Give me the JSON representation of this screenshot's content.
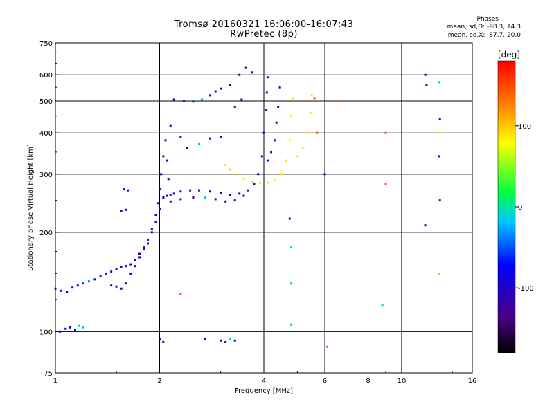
{
  "chart_data": {
    "type": "scatter",
    "title": "Tromsø 20160321 16:06:00-16:07:43",
    "subtitle": "RwPretec (8p)",
    "xlabel": "Frequency [MHz]",
    "ylabel": "Stationary phase Virtual Height [km]",
    "x_scale": "log",
    "y_scale": "log",
    "xlim": [
      1,
      16
    ],
    "ylim": [
      75,
      750
    ],
    "x_ticks": [
      1,
      2,
      4,
      6,
      8,
      10,
      16
    ],
    "x_tick_labels": [
      "1",
      "2",
      "4",
      "6",
      "8",
      "10",
      "16"
    ],
    "y_ticks": [
      75,
      100,
      200,
      300,
      400,
      500,
      600,
      750
    ],
    "y_tick_labels": [
      "75",
      "100",
      "200",
      "300",
      "400",
      "500",
      "600",
      "750"
    ],
    "x_gridlines": [
      2,
      4,
      6,
      8,
      10
    ],
    "y_gridlines": [
      100,
      200,
      300,
      400,
      500,
      600
    ],
    "grid": true,
    "legend": {
      "title": "Phases",
      "lines": [
        "mean, sd,O: -98.3, 14.3",
        "mean, sd,X:  87.7, 20.0"
      ],
      "placement": "top-right"
    },
    "colorbar": {
      "label": "[deg]",
      "ticks": [
        100,
        0,
        -100
      ],
      "tick_labels": [
        "100",
        "0",
        "-100"
      ],
      "range": [
        -180,
        180
      ],
      "colormap": "rainbow"
    },
    "series": [
      {
        "trace": "o-mode-low",
        "points": [
          [
            1.0,
            135,
            -105
          ],
          [
            1.04,
            133,
            -100
          ],
          [
            1.08,
            132,
            -110
          ],
          [
            1.12,
            136,
            -95
          ],
          [
            1.16,
            138,
            -100
          ],
          [
            1.2,
            140,
            -60
          ],
          [
            1.25,
            142,
            -40
          ],
          [
            1.3,
            144,
            -70
          ],
          [
            1.35,
            147,
            -100
          ],
          [
            1.4,
            150,
            -95
          ],
          [
            1.45,
            152,
            -100
          ],
          [
            1.5,
            155,
            -105
          ],
          [
            1.55,
            157,
            -100
          ],
          [
            1.6,
            158,
            -90
          ],
          [
            1.65,
            160,
            -100
          ],
          [
            1.7,
            165,
            -110
          ],
          [
            1.75,
            172,
            -100
          ],
          [
            1.8,
            180,
            -105
          ],
          [
            1.85,
            190,
            -95
          ],
          [
            1.9,
            205,
            -100
          ],
          [
            1.95,
            225,
            -110
          ],
          [
            1.98,
            245,
            -100
          ],
          [
            2.0,
            270,
            -105
          ],
          [
            2.02,
            300,
            -100
          ],
          [
            2.05,
            340,
            -110
          ],
          [
            2.08,
            380,
            -95
          ],
          [
            2.1,
            330,
            -100
          ],
          [
            2.12,
            290,
            -105
          ],
          [
            2.15,
            260,
            -100
          ],
          [
            1.45,
            138,
            -100
          ],
          [
            1.5,
            137,
            -95
          ],
          [
            1.55,
            135,
            -105
          ],
          [
            1.6,
            140,
            -100
          ],
          [
            1.65,
            150,
            -110
          ],
          [
            1.7,
            158,
            -100
          ],
          [
            1.75,
            168,
            -95
          ],
          [
            1.8,
            178,
            -100
          ],
          [
            1.85,
            185,
            -105
          ],
          [
            1.9,
            200,
            -100
          ],
          [
            1.95,
            215,
            -95
          ],
          [
            2.0,
            235,
            -110
          ],
          [
            2.05,
            255,
            -100
          ],
          [
            1.55,
            232,
            -105
          ],
          [
            1.6,
            234,
            -100
          ],
          [
            1.58,
            270,
            -100
          ],
          [
            1.62,
            268,
            -95
          ]
        ]
      },
      {
        "trace": "low-echo",
        "points": [
          [
            1.03,
            100,
            -110
          ],
          [
            1.07,
            102,
            -100
          ],
          [
            1.1,
            103,
            -105
          ],
          [
            1.14,
            101,
            -95
          ],
          [
            1.17,
            104,
            0
          ],
          [
            1.2,
            103,
            -20
          ],
          [
            2.0,
            95,
            -100
          ],
          [
            2.05,
            93,
            -105
          ],
          [
            2.7,
            95,
            -100
          ],
          [
            3.0,
            94,
            -110
          ],
          [
            3.1,
            93,
            -100
          ],
          [
            3.2,
            95,
            -20
          ],
          [
            3.3,
            94,
            -105
          ]
        ]
      },
      {
        "trace": "o-mode-F",
        "points": [
          [
            2.1,
            258,
            -100
          ],
          [
            2.2,
            262,
            -105
          ],
          [
            2.3,
            266,
            -100
          ],
          [
            2.45,
            268,
            -110
          ],
          [
            2.6,
            268,
            -100
          ],
          [
            2.8,
            266,
            -95
          ],
          [
            3.0,
            263,
            -100
          ],
          [
            3.2,
            260,
            -105
          ],
          [
            3.4,
            262,
            -100
          ],
          [
            3.6,
            268,
            -110
          ],
          [
            3.75,
            280,
            -100
          ],
          [
            3.85,
            300,
            -95
          ],
          [
            3.95,
            340,
            -100
          ],
          [
            4.0,
            400,
            -105
          ],
          [
            4.05,
            470,
            -110
          ],
          [
            4.08,
            530,
            -100
          ],
          [
            4.1,
            590,
            -95
          ],
          [
            2.15,
            248,
            -100
          ],
          [
            2.3,
            252,
            -95
          ],
          [
            2.5,
            255,
            -100
          ],
          [
            2.7,
            255,
            -20
          ],
          [
            2.9,
            252,
            -100
          ],
          [
            3.1,
            248,
            -105
          ],
          [
            3.3,
            250,
            -100
          ],
          [
            3.5,
            258,
            -110
          ],
          [
            4.1,
            330,
            -100
          ],
          [
            4.2,
            350,
            -105
          ],
          [
            4.3,
            380,
            -100
          ],
          [
            4.35,
            430,
            -95
          ],
          [
            4.4,
            480,
            -100
          ],
          [
            4.45,
            550,
            -110
          ]
        ]
      },
      {
        "trace": "o-mode-upper",
        "points": [
          [
            2.2,
            505,
            -100
          ],
          [
            2.35,
            500,
            -95
          ],
          [
            2.5,
            498,
            -100
          ],
          [
            2.65,
            505,
            -20
          ],
          [
            2.8,
            520,
            -100
          ],
          [
            2.9,
            535,
            -110
          ],
          [
            3.0,
            545,
            -100
          ],
          [
            3.2,
            560,
            -105
          ],
          [
            3.4,
            600,
            -130
          ],
          [
            3.55,
            630,
            -120
          ],
          [
            3.7,
            610,
            -100
          ],
          [
            3.3,
            480,
            -130
          ],
          [
            3.45,
            505,
            -100
          ],
          [
            2.4,
            360,
            -100
          ],
          [
            2.6,
            370,
            -20
          ],
          [
            2.8,
            385,
            -100
          ],
          [
            3.0,
            390,
            -105
          ],
          [
            2.3,
            390,
            -100
          ],
          [
            2.15,
            420,
            -100
          ]
        ]
      },
      {
        "trace": "x-mode-F",
        "points": [
          [
            3.1,
            320,
            90
          ],
          [
            3.2,
            310,
            95
          ],
          [
            3.35,
            298,
            88
          ],
          [
            3.5,
            290,
            85
          ],
          [
            3.7,
            285,
            92
          ],
          [
            3.9,
            282,
            87
          ],
          [
            4.1,
            283,
            90
          ],
          [
            4.3,
            288,
            85
          ],
          [
            4.5,
            300,
            90
          ],
          [
            4.65,
            330,
            92
          ],
          [
            4.75,
            380,
            85
          ],
          [
            4.8,
            450,
            88
          ],
          [
            4.85,
            510,
            90
          ],
          [
            5.0,
            340,
            88
          ],
          [
            5.2,
            360,
            85
          ],
          [
            5.35,
            400,
            90
          ],
          [
            5.45,
            460,
            87
          ],
          [
            5.5,
            520,
            90
          ]
        ]
      },
      {
        "trace": "scattered",
        "points": [
          [
            4.75,
            220,
            -100
          ],
          [
            4.8,
            180,
            0
          ],
          [
            4.8,
            140,
            -20
          ],
          [
            4.8,
            105,
            -20
          ],
          [
            5.6,
            510,
            150
          ],
          [
            5.7,
            400,
            140
          ],
          [
            6.0,
            300,
            -100
          ],
          [
            6.1,
            90,
            140
          ],
          [
            6.5,
            500,
            140
          ],
          [
            9.0,
            400,
            150
          ],
          [
            9.0,
            280,
            150
          ],
          [
            8.8,
            120,
            -20
          ],
          [
            11.7,
            600,
            -100
          ],
          [
            11.8,
            560,
            -110
          ],
          [
            12.8,
            570,
            -20
          ],
          [
            12.9,
            440,
            -100
          ],
          [
            12.9,
            400,
            90
          ],
          [
            12.8,
            340,
            -100
          ],
          [
            12.9,
            250,
            -120
          ],
          [
            11.7,
            210,
            -110
          ],
          [
            12.8,
            150,
            40
          ],
          [
            2.3,
            130,
            150
          ]
        ]
      }
    ]
  }
}
